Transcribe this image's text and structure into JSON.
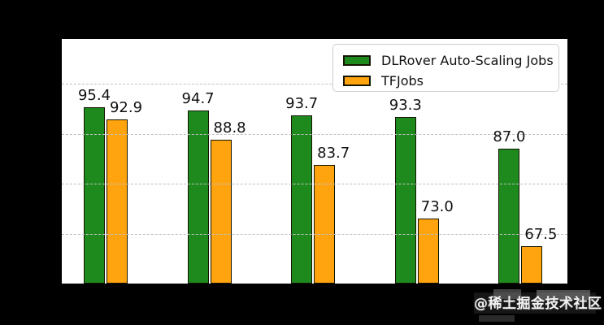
{
  "page": {
    "background": "#000000",
    "panel_background": "#ffffff"
  },
  "chart_data": {
    "type": "bar",
    "title": "",
    "xlabel": "",
    "ylabel": "",
    "categories": [
      "",
      "",
      "",
      "",
      ""
    ],
    "series": [
      {
        "name": "DLRover Auto-Scaling Jobs",
        "color": "#1e8a1e",
        "values": [
          95.4,
          94.7,
          93.7,
          93.3,
          87.0
        ]
      },
      {
        "name": "TFJobs",
        "color": "#ffa40e",
        "values": [
          92.9,
          88.8,
          83.7,
          73.0,
          67.5
        ]
      }
    ],
    "bar_edge_color": "#141400",
    "value_labels_shown": true,
    "value_label_color": "#111111",
    "ylim": [
      60,
      109
    ],
    "gridlines": [
      70,
      80,
      90,
      100
    ],
    "grid_color": "#c0c0c0",
    "grid_style": "dashed",
    "grid_above_bars": true,
    "legend_position": "upper right",
    "legend_border_color": "#cfcfcf"
  },
  "watermark": {
    "text": "@稀土掘金技术社区",
    "color": "#f2f2f2"
  }
}
